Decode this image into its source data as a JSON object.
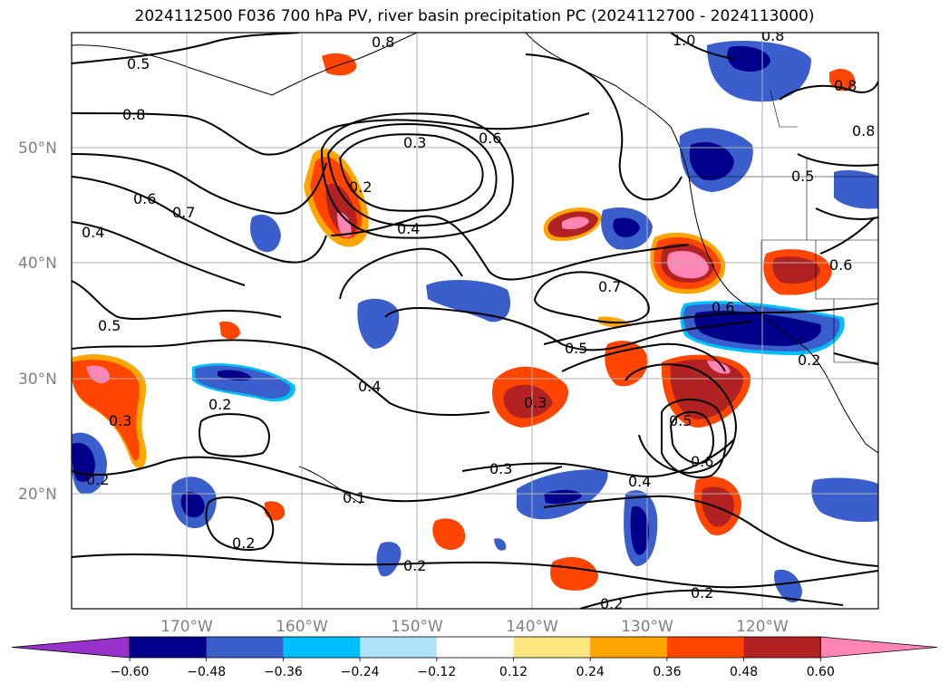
{
  "title": "2024112500 F036 700 hPa PV, river basin precipitation PC (2024112700 - 2024113000)",
  "map": {
    "lat_labels": [
      "50°N",
      "40°N",
      "30°N",
      "20°N"
    ],
    "lon_labels": [
      "170°W",
      "160°W",
      "150°W",
      "140°W",
      "130°W",
      "120°W"
    ],
    "contour_labels": [
      {
        "text": "0.5"
      },
      {
        "text": "0.8"
      },
      {
        "text": "0.6"
      },
      {
        "text": "0.7"
      },
      {
        "text": "0.4"
      },
      {
        "text": "0.5"
      },
      {
        "text": "0.3"
      },
      {
        "text": "0.2"
      },
      {
        "text": "0.4"
      },
      {
        "text": "0.6"
      },
      {
        "text": "0.7"
      },
      {
        "text": "0.6"
      },
      {
        "text": "0.5"
      },
      {
        "text": "0.3"
      },
      {
        "text": "0.4"
      },
      {
        "text": "0.2"
      },
      {
        "text": "0.3"
      },
      {
        "text": "0.2"
      },
      {
        "text": "0.2"
      },
      {
        "text": "0.2"
      },
      {
        "text": "0.3"
      },
      {
        "text": "0.4"
      },
      {
        "text": "0.5"
      },
      {
        "text": "0.6"
      },
      {
        "text": "0.2"
      },
      {
        "text": "0.2"
      },
      {
        "text": "1.0"
      },
      {
        "text": "0.8"
      },
      {
        "text": "0.8"
      },
      {
        "text": "0.8"
      },
      {
        "text": "0.5"
      },
      {
        "text": "0.6"
      },
      {
        "text": "0.2"
      },
      {
        "text": "0.8"
      },
      {
        "text": "0.1"
      }
    ]
  },
  "colorbar": {
    "tick_labels": [
      "−0.60",
      "−0.48",
      "−0.36",
      "−0.24",
      "−0.12",
      "0.12",
      "0.24",
      "0.36",
      "0.48",
      "0.60"
    ],
    "colors": [
      "#9932cc",
      "#00008b",
      "#3a5fcd",
      "#00bfff",
      "#aee2fa",
      "#ffffff",
      "#ffe680",
      "#ffa500",
      "#ff4500",
      "#b22222",
      "#ff85b4"
    ]
  },
  "colors": {
    "neg_strong": "#00008b",
    "neg_mid": "#3a5fcd",
    "neg_light": "#00bfff",
    "pos_light": "#ffe680",
    "pos_orange": "#ffa500",
    "pos_red": "#ff4500",
    "pos_dark": "#b22222",
    "pos_pink": "#ff85b4",
    "grid": "#b0b0b0"
  }
}
